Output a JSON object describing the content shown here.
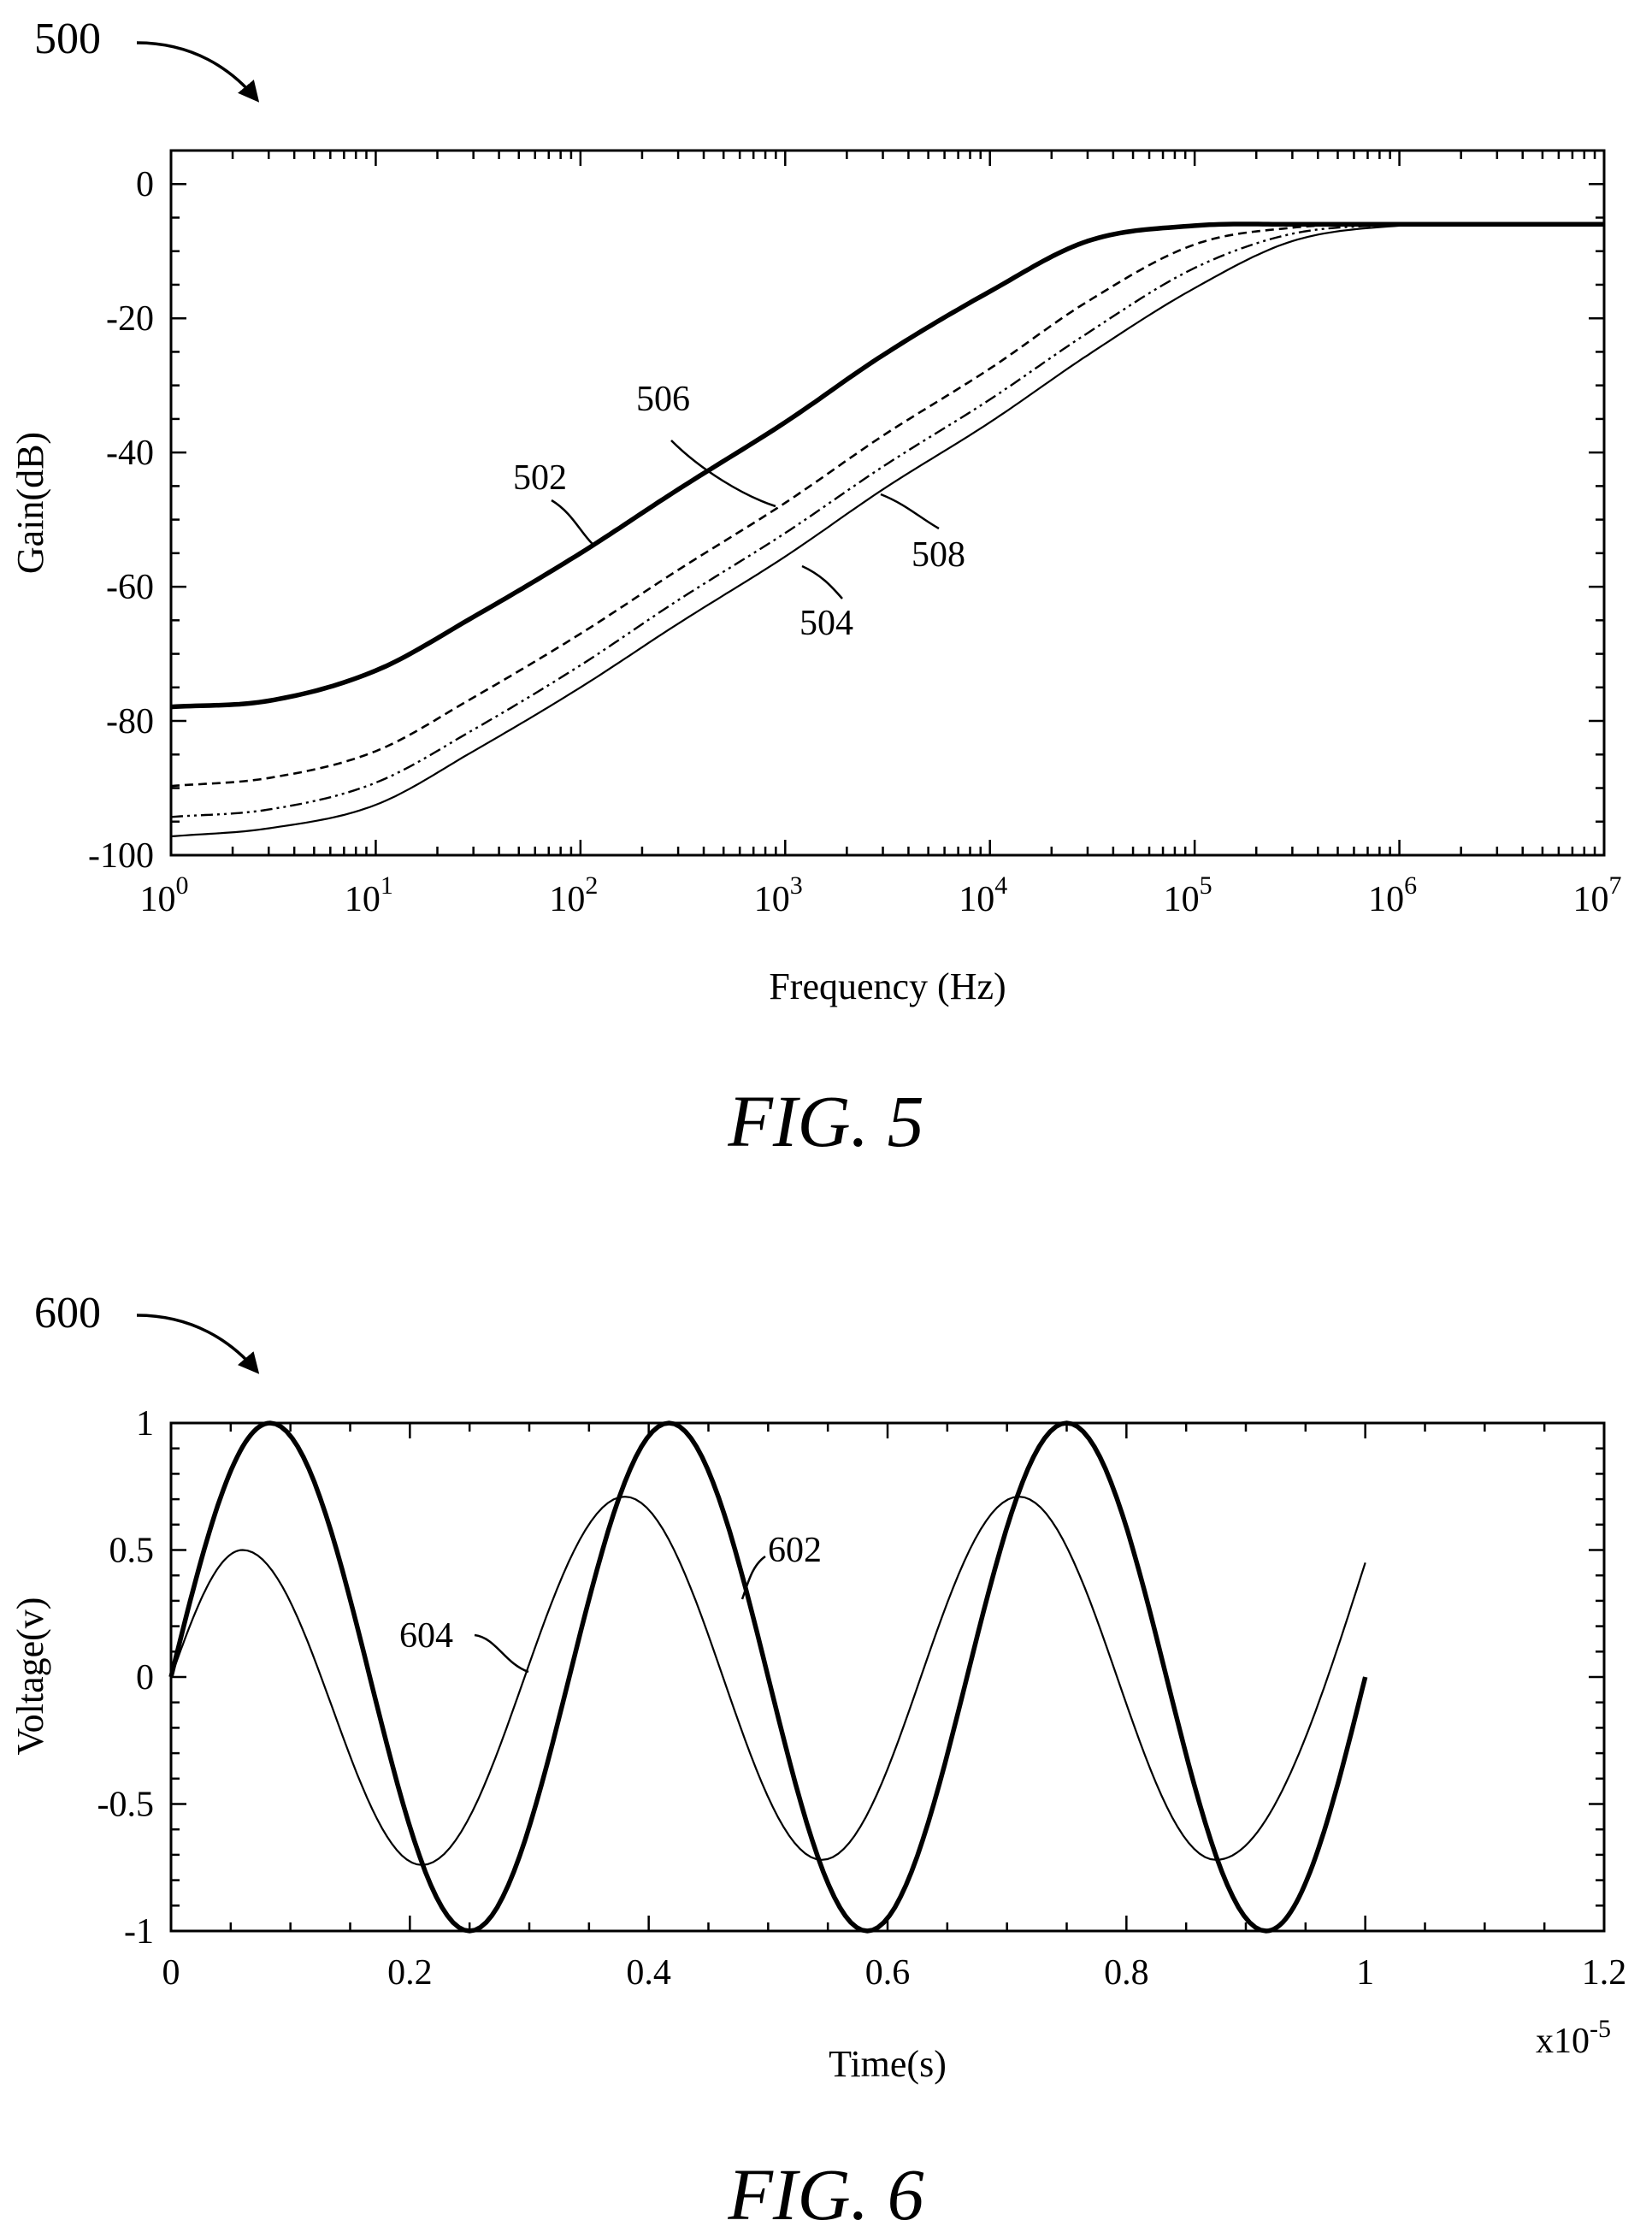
{
  "chart_data": [
    {
      "type": "line",
      "figure_ref": "500",
      "caption": "FIG. 5",
      "xlabel": "Frequency (Hz)",
      "ylabel": "Gain(dB)",
      "xscale": "log",
      "xlim": [
        1,
        10000000
      ],
      "ylim": [
        -100,
        5
      ],
      "xtick_labels": [
        {
          "base": "10",
          "exp": "0"
        },
        {
          "base": "10",
          "exp": "1"
        },
        {
          "base": "10",
          "exp": "2"
        },
        {
          "base": "10",
          "exp": "3"
        },
        {
          "base": "10",
          "exp": "4"
        },
        {
          "base": "10",
          "exp": "5"
        },
        {
          "base": "10",
          "exp": "6"
        },
        {
          "base": "10",
          "exp": "7"
        }
      ],
      "ytick_labels": [
        "0",
        "-20",
        "-40",
        "-60",
        "-80",
        "-100"
      ],
      "grid": false,
      "series": [
        {
          "name": "502",
          "style": "thick-solid",
          "x": [
            1,
            3,
            10,
            30,
            100,
            300,
            1000,
            3000,
            10000,
            30000,
            100000,
            300000,
            1000000,
            3000000,
            10000000
          ],
          "y": [
            -77.9,
            -77,
            -72.5,
            -64.5,
            -55,
            -45.5,
            -35.5,
            -25.5,
            -16,
            -8.5,
            -6.2,
            -6,
            -6,
            -6,
            -6
          ]
        },
        {
          "name": "506",
          "style": "dashed",
          "x": [
            1,
            3,
            10,
            30,
            100,
            300,
            1000,
            3000,
            10000,
            30000,
            100000,
            300000,
            1000000,
            3000000,
            10000000
          ],
          "y": [
            -89.7,
            -88.5,
            -84.5,
            -76.5,
            -67,
            -57.5,
            -47.5,
            -37.5,
            -27.5,
            -17.5,
            -9,
            -6.5,
            -6,
            -6,
            -6
          ]
        },
        {
          "name": "508",
          "style": "dash-dot-dot",
          "x": [
            1,
            3,
            10,
            30,
            100,
            300,
            1000,
            3000,
            10000,
            30000,
            100000,
            300000,
            1000000,
            3000000,
            10000000
          ],
          "y": [
            -94.3,
            -93.2,
            -89.2,
            -81.3,
            -71.7,
            -62,
            -52,
            -42.1,
            -32.1,
            -22.2,
            -12.5,
            -7.4,
            -6.1,
            -6,
            -6
          ]
        },
        {
          "name": "504",
          "style": "thin-solid",
          "x": [
            1,
            3,
            10,
            30,
            100,
            300,
            1000,
            3000,
            10000,
            30000,
            100000,
            300000,
            1000000,
            3000000,
            10000000
          ],
          "y": [
            -97.2,
            -96,
            -92.5,
            -84.5,
            -75,
            -65.5,
            -55.5,
            -45.5,
            -35.5,
            -25.5,
            -15.5,
            -8.5,
            -6.2,
            -6,
            -6
          ]
        }
      ],
      "annotations": [
        {
          "text": "502",
          "target_series": "502"
        },
        {
          "text": "506",
          "target_series": "506"
        },
        {
          "text": "508",
          "target_series": "508"
        },
        {
          "text": "504",
          "target_series": "504"
        }
      ]
    },
    {
      "type": "line",
      "figure_ref": "600",
      "caption": "FIG. 6",
      "xlabel": "Time(s)",
      "ylabel": "Voltage(v)",
      "xlim": [
        0,
        1.2
      ],
      "x_multiplier_label": {
        "base": "x10",
        "exp": "-5"
      },
      "ylim": [
        -1,
        1
      ],
      "xtick_labels": [
        "0",
        "0.2",
        "0.4",
        "0.6",
        "0.8",
        "1",
        "1.2"
      ],
      "ytick_labels": [
        "1",
        "0.5",
        "0",
        "-0.5",
        "-1"
      ],
      "grid": false,
      "series": [
        {
          "name": "602",
          "style": "thick-solid",
          "x": [
            0,
            0.083,
            0.25,
            0.417,
            0.583,
            0.75,
            0.917,
            1.0
          ],
          "y": [
            0,
            1,
            -1,
            1,
            -1,
            1,
            -1,
            0
          ]
        },
        {
          "name": "604",
          "style": "thin-solid",
          "x": [
            0,
            0.06,
            0.21,
            0.38,
            0.545,
            0.71,
            0.875,
            1.0
          ],
          "y": [
            0,
            0.5,
            -0.74,
            0.71,
            -0.72,
            0.71,
            -0.72,
            0.45
          ]
        }
      ],
      "annotations": [
        {
          "text": "602",
          "target_series": "602"
        },
        {
          "text": "604",
          "target_series": "604"
        }
      ]
    }
  ]
}
